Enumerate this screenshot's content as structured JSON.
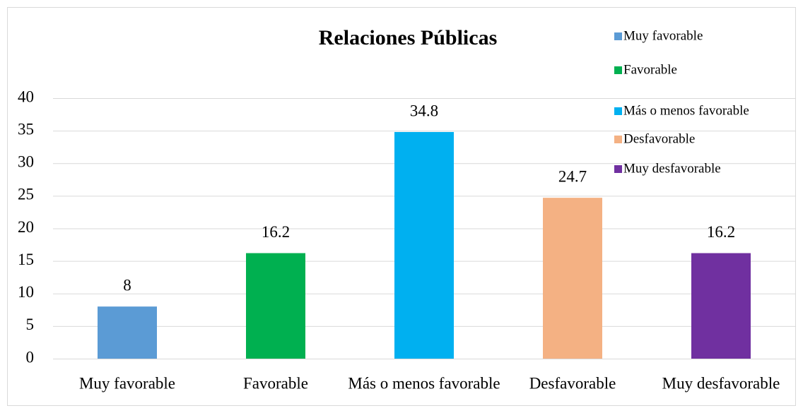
{
  "chart_data": {
    "type": "bar",
    "title": "Relaciones Públicas",
    "categories": [
      "Muy favorable",
      "Favorable",
      "Más o menos favorable",
      "Desfavorable",
      "Muy desfavorable"
    ],
    "values": [
      8,
      16.2,
      34.8,
      24.7,
      16.2
    ],
    "colors": [
      "#5b9bd5",
      "#00b050",
      "#00b0f0",
      "#f4b183",
      "#7030a0"
    ],
    "ylim": [
      0,
      40
    ],
    "yticks": [
      0,
      5,
      10,
      15,
      20,
      25,
      30,
      35,
      40
    ],
    "grid": true,
    "legend": "top-right"
  }
}
